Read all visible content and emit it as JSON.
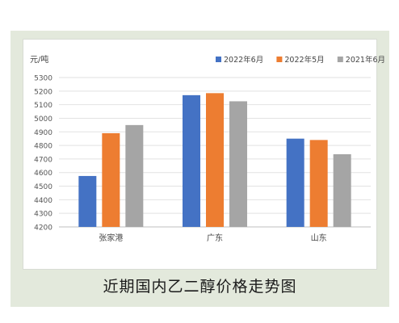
{
  "caption": "近期国内乙二醇价格走势图",
  "chart_data": {
    "type": "bar",
    "unit_label": "元/吨",
    "categories": [
      "张家港",
      "广东",
      "山东"
    ],
    "ylim": [
      4200,
      5300
    ],
    "yticks": [
      4200,
      4300,
      4400,
      4500,
      4600,
      4700,
      4800,
      4900,
      5000,
      5100,
      5200,
      5300
    ],
    "grid": true,
    "legend_position": "top-right",
    "series": [
      {
        "name": "2022年6月",
        "color": "#4472c4",
        "values": [
          4575,
          5170,
          4850
        ]
      },
      {
        "name": "2022年5月",
        "color": "#ed7d31",
        "values": [
          4890,
          5185,
          4840
        ]
      },
      {
        "name": "2021年6月",
        "color": "#a5a5a5",
        "values": [
          4950,
          5125,
          4735
        ]
      }
    ]
  }
}
